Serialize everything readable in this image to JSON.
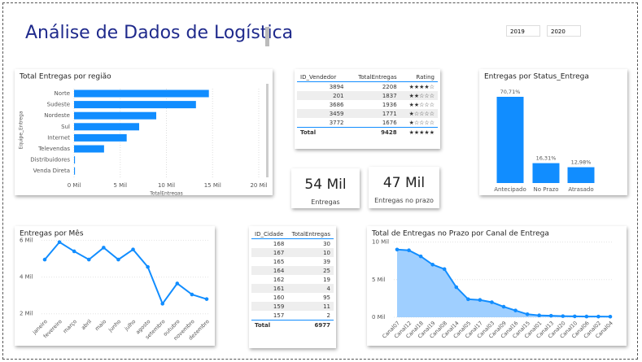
{
  "header": {
    "title": "Análise de Dados de Logística",
    "slicers": [
      "2019",
      "2020"
    ]
  },
  "cards": [
    {
      "value": "54 Mil",
      "label": "Entregas"
    },
    {
      "value": "47 Mil",
      "label": "Entregas no prazo"
    }
  ],
  "tables": [
    {
      "columns": [
        "ID_Vendedor",
        "TotalEntregas",
        "Rating"
      ],
      "rows": [
        [
          3894,
          2208,
          "★★★★☆"
        ],
        [
          201,
          1837,
          "★★☆☆☆"
        ],
        [
          3686,
          1936,
          "★★☆☆☆"
        ],
        [
          3459,
          1771,
          "★☆☆☆☆"
        ],
        [
          3772,
          1676,
          "★☆☆☆☆"
        ]
      ],
      "total": [
        "Total",
        9428,
        "★★★★★"
      ]
    },
    {
      "columns": [
        "ID_Cidade",
        "TotalEntregas"
      ],
      "rows": [
        [
          168,
          30
        ],
        [
          167,
          10
        ],
        [
          165,
          39
        ],
        [
          164,
          25
        ],
        [
          162,
          19
        ],
        [
          161,
          4
        ],
        [
          160,
          95
        ],
        [
          159,
          11
        ],
        [
          157,
          2
        ]
      ],
      "total": [
        "Total",
        6977
      ]
    }
  ],
  "chart_data": [
    {
      "type": "bar",
      "orientation": "horizontal",
      "title": "Total Entregas por região",
      "xlabel": "TotalEntregas",
      "ylabel": "Equipe_Entrega",
      "categories": [
        "Norte",
        "Sudeste",
        "Nordeste",
        "Sul",
        "Internet",
        "Televendas",
        "Distribuidores",
        "Venda Direta"
      ],
      "values": [
        14600,
        13200,
        8900,
        7050,
        5700,
        3250,
        100,
        100
      ],
      "color": "#118dff",
      "grid": true,
      "xlim": [
        0,
        20000
      ],
      "xticks": [
        {
          "value": 0,
          "label": "0 Mil"
        },
        {
          "value": 5000,
          "label": "5 Mil"
        },
        {
          "value": 10000,
          "label": "10 Mil"
        },
        {
          "value": 15000,
          "label": "15 Mil"
        },
        {
          "value": 20000,
          "label": "20 Mil"
        }
      ]
    },
    {
      "type": "bar",
      "orientation": "vertical",
      "title": "Entregas por Status_Entrega",
      "categories": [
        "Antecipado",
        "No Prazo",
        "Atrasado"
      ],
      "values": [
        70.71,
        16.31,
        12.98
      ],
      "value_labels": [
        "70,71%",
        "16,31%",
        "12,98%"
      ],
      "color": "#118dff"
    },
    {
      "type": "line",
      "title": "Entregas por Mês",
      "categories": [
        "janeiro",
        "fevereiro",
        "março",
        "abril",
        "maio",
        "junho",
        "julho",
        "agosto",
        "setembro",
        "outubro",
        "novembro",
        "dezembro"
      ],
      "values": [
        4950,
        5900,
        5400,
        4950,
        5600,
        4950,
        5500,
        4550,
        2550,
        3650,
        3050,
        2800
      ],
      "color": "#118dff",
      "grid": true,
      "ylim": [
        1900,
        6150
      ],
      "yticks": [
        {
          "value": 2000,
          "label": "2 Mil"
        },
        {
          "value": 4000,
          "label": "4 Mil"
        },
        {
          "value": 6000,
          "label": "6 Mil"
        }
      ]
    },
    {
      "type": "area",
      "title": "Total de Entregas no Prazo por Canal de Entrega",
      "categories": [
        "Canal07",
        "Canal12",
        "Canal18",
        "Canal19",
        "Canal08",
        "Canal14",
        "Canal05",
        "Canal17",
        "Canal03",
        "Canal09",
        "Canal16",
        "Canal15",
        "Canal01",
        "Canal13",
        "Canal20",
        "Canal10",
        "Canal06",
        "Canal02",
        "Canal04"
      ],
      "values": [
        9000,
        8900,
        8100,
        7000,
        6400,
        4000,
        2400,
        2300,
        2000,
        1400,
        900,
        400,
        250,
        200,
        150,
        120,
        100,
        90,
        80
      ],
      "color": "#118dff",
      "fill": "#9fcfff",
      "grid": true,
      "ylim": [
        0,
        10600
      ],
      "yticks": [
        {
          "value": 0,
          "label": "0 Mil"
        },
        {
          "value": 5000,
          "label": "5 Mil"
        },
        {
          "value": 10000,
          "label": "10 Mil"
        }
      ]
    }
  ]
}
